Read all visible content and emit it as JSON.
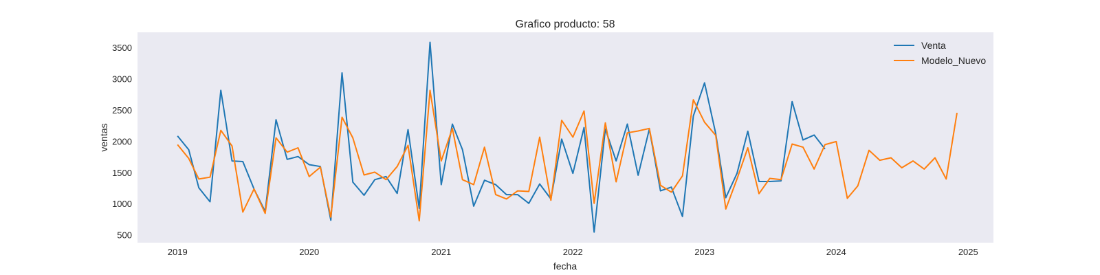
{
  "chart_data": {
    "type": "line",
    "title": "Grafico producto: 58",
    "xlabel": "fecha",
    "ylabel": "ventas",
    "xlim": [
      "2018-09-12",
      "2025-03-12"
    ],
    "ylim": [
      380,
      3750
    ],
    "grid": false,
    "background": "#eaeaf2",
    "legend_position": "top-right",
    "x_ticks": [
      "2019",
      "2020",
      "2021",
      "2022",
      "2023",
      "2024",
      "2025"
    ],
    "y_ticks": [
      500,
      1000,
      1500,
      2000,
      2500,
      3000,
      3500
    ],
    "series": [
      {
        "name": "Venta",
        "color": "#1f77b4",
        "x": [
          "2019-01",
          "2019-02",
          "2019-03",
          "2019-04",
          "2019-05",
          "2019-06",
          "2019-07",
          "2019-08",
          "2019-09",
          "2019-10",
          "2019-11",
          "2019-12",
          "2020-01",
          "2020-02",
          "2020-03",
          "2020-04",
          "2020-05",
          "2020-06",
          "2020-07",
          "2020-08",
          "2020-09",
          "2020-10",
          "2020-11",
          "2020-12",
          "2021-01",
          "2021-02",
          "2021-03",
          "2021-04",
          "2021-05",
          "2021-06",
          "2021-07",
          "2021-08",
          "2021-09",
          "2021-10",
          "2021-11",
          "2021-12",
          "2022-01",
          "2022-02",
          "2022-03",
          "2022-04",
          "2022-05",
          "2022-06",
          "2022-07",
          "2022-08",
          "2022-09",
          "2022-10",
          "2022-11",
          "2022-12",
          "2023-01",
          "2023-02",
          "2023-03",
          "2023-04",
          "2023-05",
          "2023-06",
          "2023-07",
          "2023-08",
          "2023-09",
          "2023-10",
          "2023-11",
          "2023-12"
        ],
        "values": [
          2090,
          1870,
          1260,
          1035,
          2820,
          1690,
          1680,
          1240,
          880,
          2350,
          1715,
          1760,
          1630,
          1600,
          740,
          3100,
          1350,
          1140,
          1390,
          1440,
          1170,
          2190,
          930,
          3590,
          1310,
          2280,
          1870,
          965,
          1380,
          1310,
          1150,
          1150,
          1010,
          1320,
          1080,
          2040,
          1490,
          2225,
          550,
          2200,
          1690,
          2280,
          1460,
          2200,
          1210,
          1270,
          800,
          2410,
          2940,
          2130,
          1100,
          1490,
          2165,
          1360,
          1360,
          1370,
          2640,
          2025,
          2105,
          1880
        ]
      },
      {
        "name": "Modelo_Nuevo",
        "color": "#ff7f0e",
        "x": [
          "2019-01",
          "2019-02",
          "2019-03",
          "2019-04",
          "2019-05",
          "2019-06",
          "2019-07",
          "2019-08",
          "2019-09",
          "2019-10",
          "2019-11",
          "2019-12",
          "2020-01",
          "2020-02",
          "2020-03",
          "2020-04",
          "2020-05",
          "2020-06",
          "2020-07",
          "2020-08",
          "2020-09",
          "2020-10",
          "2020-11",
          "2020-12",
          "2021-01",
          "2021-02",
          "2021-03",
          "2021-04",
          "2021-05",
          "2021-06",
          "2021-07",
          "2021-08",
          "2021-09",
          "2021-10",
          "2021-11",
          "2021-12",
          "2022-01",
          "2022-02",
          "2022-03",
          "2022-04",
          "2022-05",
          "2022-06",
          "2022-07",
          "2022-08",
          "2022-09",
          "2022-10",
          "2022-11",
          "2022-12",
          "2023-01",
          "2023-02",
          "2023-03",
          "2023-04",
          "2023-05",
          "2023-06",
          "2023-07",
          "2023-08",
          "2023-09",
          "2023-10",
          "2023-11",
          "2023-12",
          "2024-01",
          "2024-02",
          "2024-03",
          "2024-04",
          "2024-05",
          "2024-06",
          "2024-07",
          "2024-08",
          "2024-09",
          "2024-10",
          "2024-11",
          "2024-12"
        ],
        "values": [
          1950,
          1730,
          1400,
          1430,
          2180,
          1930,
          870,
          1240,
          850,
          2060,
          1830,
          1900,
          1440,
          1590,
          790,
          2390,
          2060,
          1465,
          1510,
          1390,
          1600,
          1940,
          730,
          2820,
          1690,
          2210,
          1390,
          1310,
          1910,
          1150,
          1080,
          1210,
          1200,
          2070,
          1060,
          2340,
          2070,
          2490,
          1010,
          2300,
          1355,
          2140,
          2170,
          2210,
          1300,
          1190,
          1450,
          2670,
          2310,
          2100,
          920,
          1400,
          1900,
          1165,
          1410,
          1390,
          1960,
          1910,
          1560,
          1950,
          2000,
          1090,
          1290,
          1860,
          1700,
          1740,
          1580,
          1690,
          1560,
          1740,
          1400,
          2460
        ]
      }
    ]
  }
}
